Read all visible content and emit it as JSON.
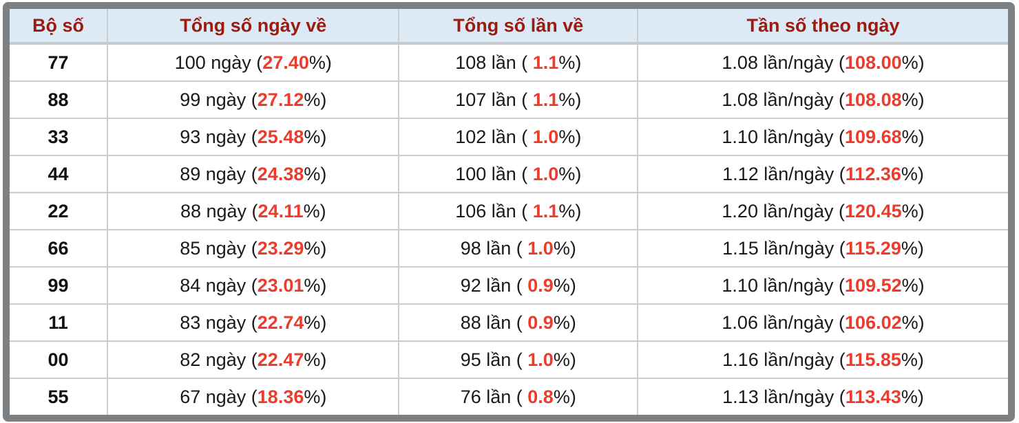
{
  "colors": {
    "frame_border": "#7d8082",
    "header_bg": "#dbeaf4",
    "header_text": "#9c1b10",
    "highlight_red": "#ed3c2c",
    "cell_separator": "#cccccc"
  },
  "table": {
    "columns": [
      {
        "label": "Bộ số"
      },
      {
        "label": "Tổng số ngày về"
      },
      {
        "label": "Tổng số lần về"
      },
      {
        "label": "Tần số theo ngày"
      }
    ],
    "rows": [
      {
        "pair": "77",
        "days": {
          "pre": "100 ngày (",
          "pct": "27.40",
          "suf": "%)"
        },
        "times": {
          "pre": "108 lần ( ",
          "pct": "1.1",
          "suf": "%)"
        },
        "freq": {
          "pre": "1.08 lần/ngày (",
          "pct": "108.00",
          "suf": "%)"
        }
      },
      {
        "pair": "88",
        "days": {
          "pre": "99 ngày (",
          "pct": "27.12",
          "suf": "%)"
        },
        "times": {
          "pre": "107 lần ( ",
          "pct": "1.1",
          "suf": "%)"
        },
        "freq": {
          "pre": "1.08 lần/ngày (",
          "pct": "108.08",
          "suf": "%)"
        }
      },
      {
        "pair": "33",
        "days": {
          "pre": "93 ngày (",
          "pct": "25.48",
          "suf": "%)"
        },
        "times": {
          "pre": "102 lần ( ",
          "pct": "1.0",
          "suf": "%)"
        },
        "freq": {
          "pre": "1.10 lần/ngày (",
          "pct": "109.68",
          "suf": "%)"
        }
      },
      {
        "pair": "44",
        "days": {
          "pre": "89 ngày (",
          "pct": "24.38",
          "suf": "%)"
        },
        "times": {
          "pre": "100 lần ( ",
          "pct": "1.0",
          "suf": "%)"
        },
        "freq": {
          "pre": "1.12 lần/ngày (",
          "pct": "112.36",
          "suf": "%)"
        }
      },
      {
        "pair": "22",
        "days": {
          "pre": "88 ngày (",
          "pct": "24.11",
          "suf": "%)"
        },
        "times": {
          "pre": "106 lần ( ",
          "pct": "1.1",
          "suf": "%)"
        },
        "freq": {
          "pre": "1.20 lần/ngày (",
          "pct": "120.45",
          "suf": "%)"
        }
      },
      {
        "pair": "66",
        "days": {
          "pre": "85 ngày (",
          "pct": "23.29",
          "suf": "%)"
        },
        "times": {
          "pre": "98 lần ( ",
          "pct": "1.0",
          "suf": "%)"
        },
        "freq": {
          "pre": "1.15 lần/ngày (",
          "pct": "115.29",
          "suf": "%)"
        }
      },
      {
        "pair": "99",
        "days": {
          "pre": "84 ngày (",
          "pct": "23.01",
          "suf": "%)"
        },
        "times": {
          "pre": "92 lần ( ",
          "pct": "0.9",
          "suf": "%)"
        },
        "freq": {
          "pre": "1.10 lần/ngày (",
          "pct": "109.52",
          "suf": "%)"
        }
      },
      {
        "pair": "11",
        "days": {
          "pre": "83 ngày (",
          "pct": "22.74",
          "suf": "%)"
        },
        "times": {
          "pre": "88 lần ( ",
          "pct": "0.9",
          "suf": "%)"
        },
        "freq": {
          "pre": "1.06 lần/ngày (",
          "pct": "106.02",
          "suf": "%)"
        }
      },
      {
        "pair": "00",
        "days": {
          "pre": "82 ngày (",
          "pct": "22.47",
          "suf": "%)"
        },
        "times": {
          "pre": "95 lần ( ",
          "pct": "1.0",
          "suf": "%)"
        },
        "freq": {
          "pre": "1.16 lần/ngày (",
          "pct": "115.85",
          "suf": "%)"
        }
      },
      {
        "pair": "55",
        "days": {
          "pre": "67 ngày (",
          "pct": "18.36",
          "suf": "%)"
        },
        "times": {
          "pre": "76 lần ( ",
          "pct": "0.8",
          "suf": "%)"
        },
        "freq": {
          "pre": "1.13 lần/ngày (",
          "pct": "113.43",
          "suf": "%)"
        }
      }
    ]
  }
}
